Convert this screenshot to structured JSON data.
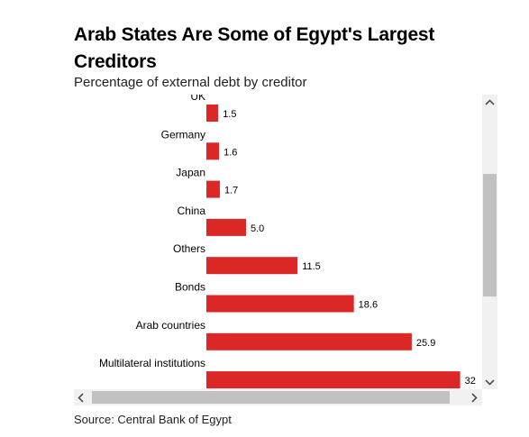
{
  "header": {
    "title": "Arab States Are Some of Egypt's Largest Creditors",
    "subtitle": "Percentage of external debt by creditor"
  },
  "footer": {
    "source": "Source: Central Bank of Egypt"
  },
  "colors": {
    "bar": "#dc2727",
    "text": "#000000",
    "scroll_track": "#f1f1f1",
    "scroll_thumb": "#c1c1c1"
  },
  "scrollbar": {
    "up": "^",
    "down": "v",
    "left": "<",
    "right": ">"
  },
  "chart_data": {
    "type": "bar",
    "orientation": "horizontal",
    "categories": [
      "UK",
      "Germany",
      "Japan",
      "China",
      "Others",
      "Bonds",
      "Arab countries",
      "Multilateral institutions"
    ],
    "values": [
      1.5,
      1.6,
      1.7,
      5.0,
      11.5,
      18.6,
      25.9,
      32
    ],
    "value_labels": [
      "1.5",
      "1.6",
      "1.7",
      "5.0",
      "11.5",
      "18.6",
      "25.9",
      "32"
    ],
    "title": "Arab States Are Some of Egypt's Largest Creditors",
    "subtitle": "Percentage of external debt by creditor",
    "xlabel": "",
    "ylabel": "",
    "grid": false,
    "legend": "none"
  }
}
